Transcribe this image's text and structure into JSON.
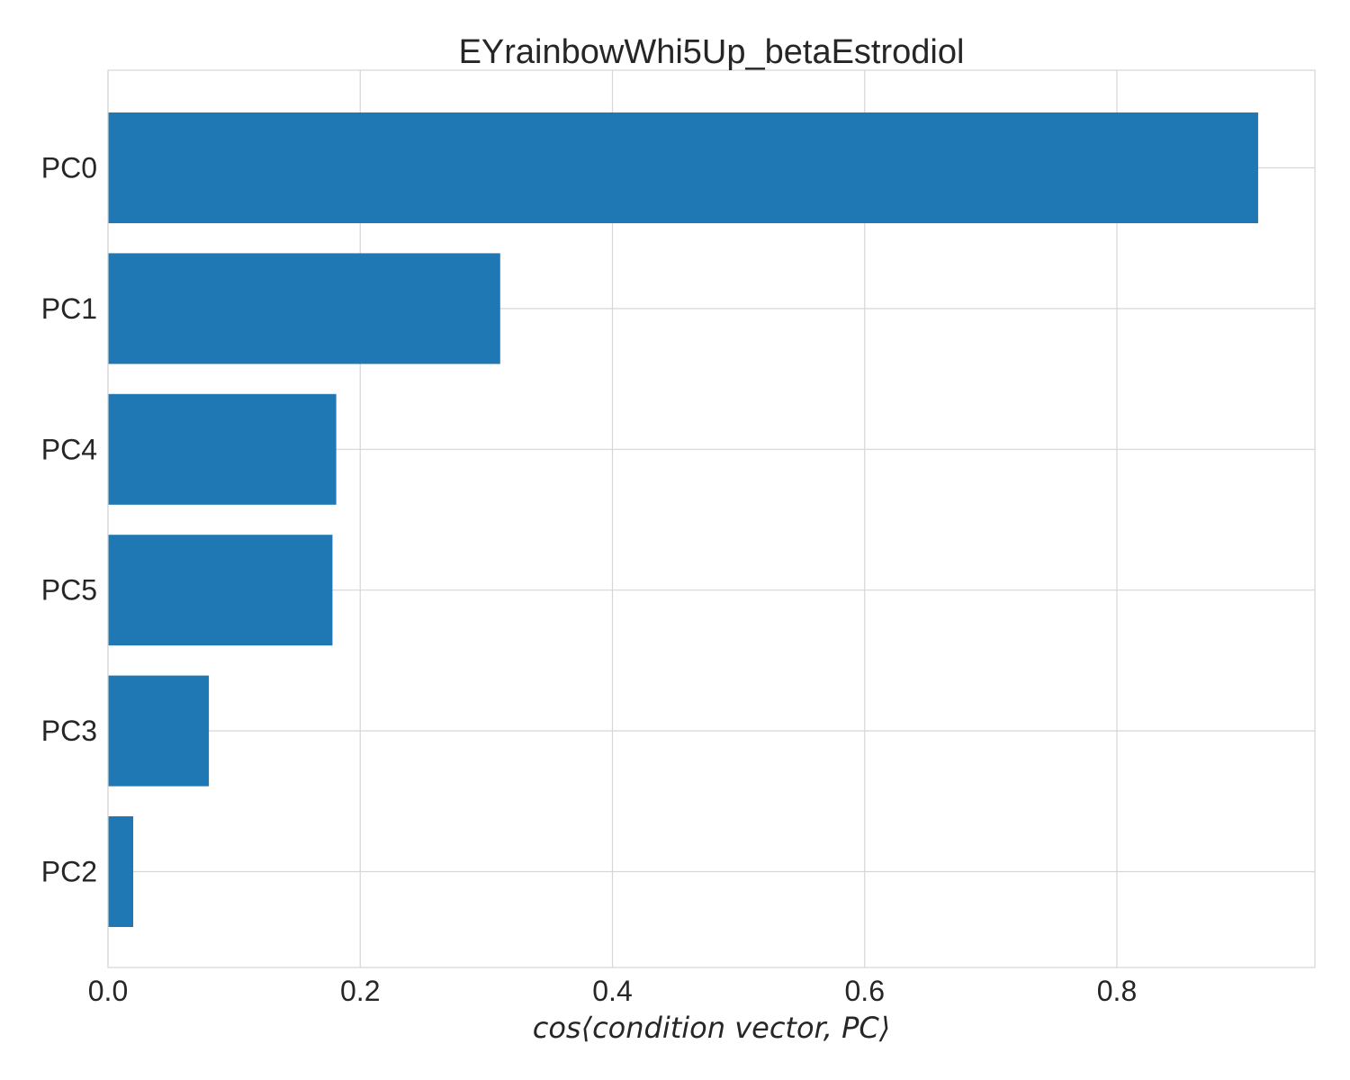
{
  "chart_data": {
    "type": "bar",
    "orientation": "horizontal",
    "title": "EYrainbowWhi5Up_betaEstrodiol",
    "xlabel": "cos⟨condition vector, PC⟩",
    "ylabel": "",
    "categories": [
      "PC0",
      "PC1",
      "PC4",
      "PC5",
      "PC3",
      "PC2"
    ],
    "values": [
      0.912,
      0.311,
      0.181,
      0.178,
      0.08,
      0.02
    ],
    "xlim": [
      0.0,
      0.957
    ],
    "xticks": [
      0.0,
      0.2,
      0.4,
      0.6,
      0.8
    ],
    "xtick_labels": [
      "0.0",
      "0.2",
      "0.4",
      "0.6",
      "0.8"
    ],
    "grid": true,
    "bar_color": "#1f77b4",
    "grid_color": "#d6d6d6",
    "text_color": "#262626"
  }
}
